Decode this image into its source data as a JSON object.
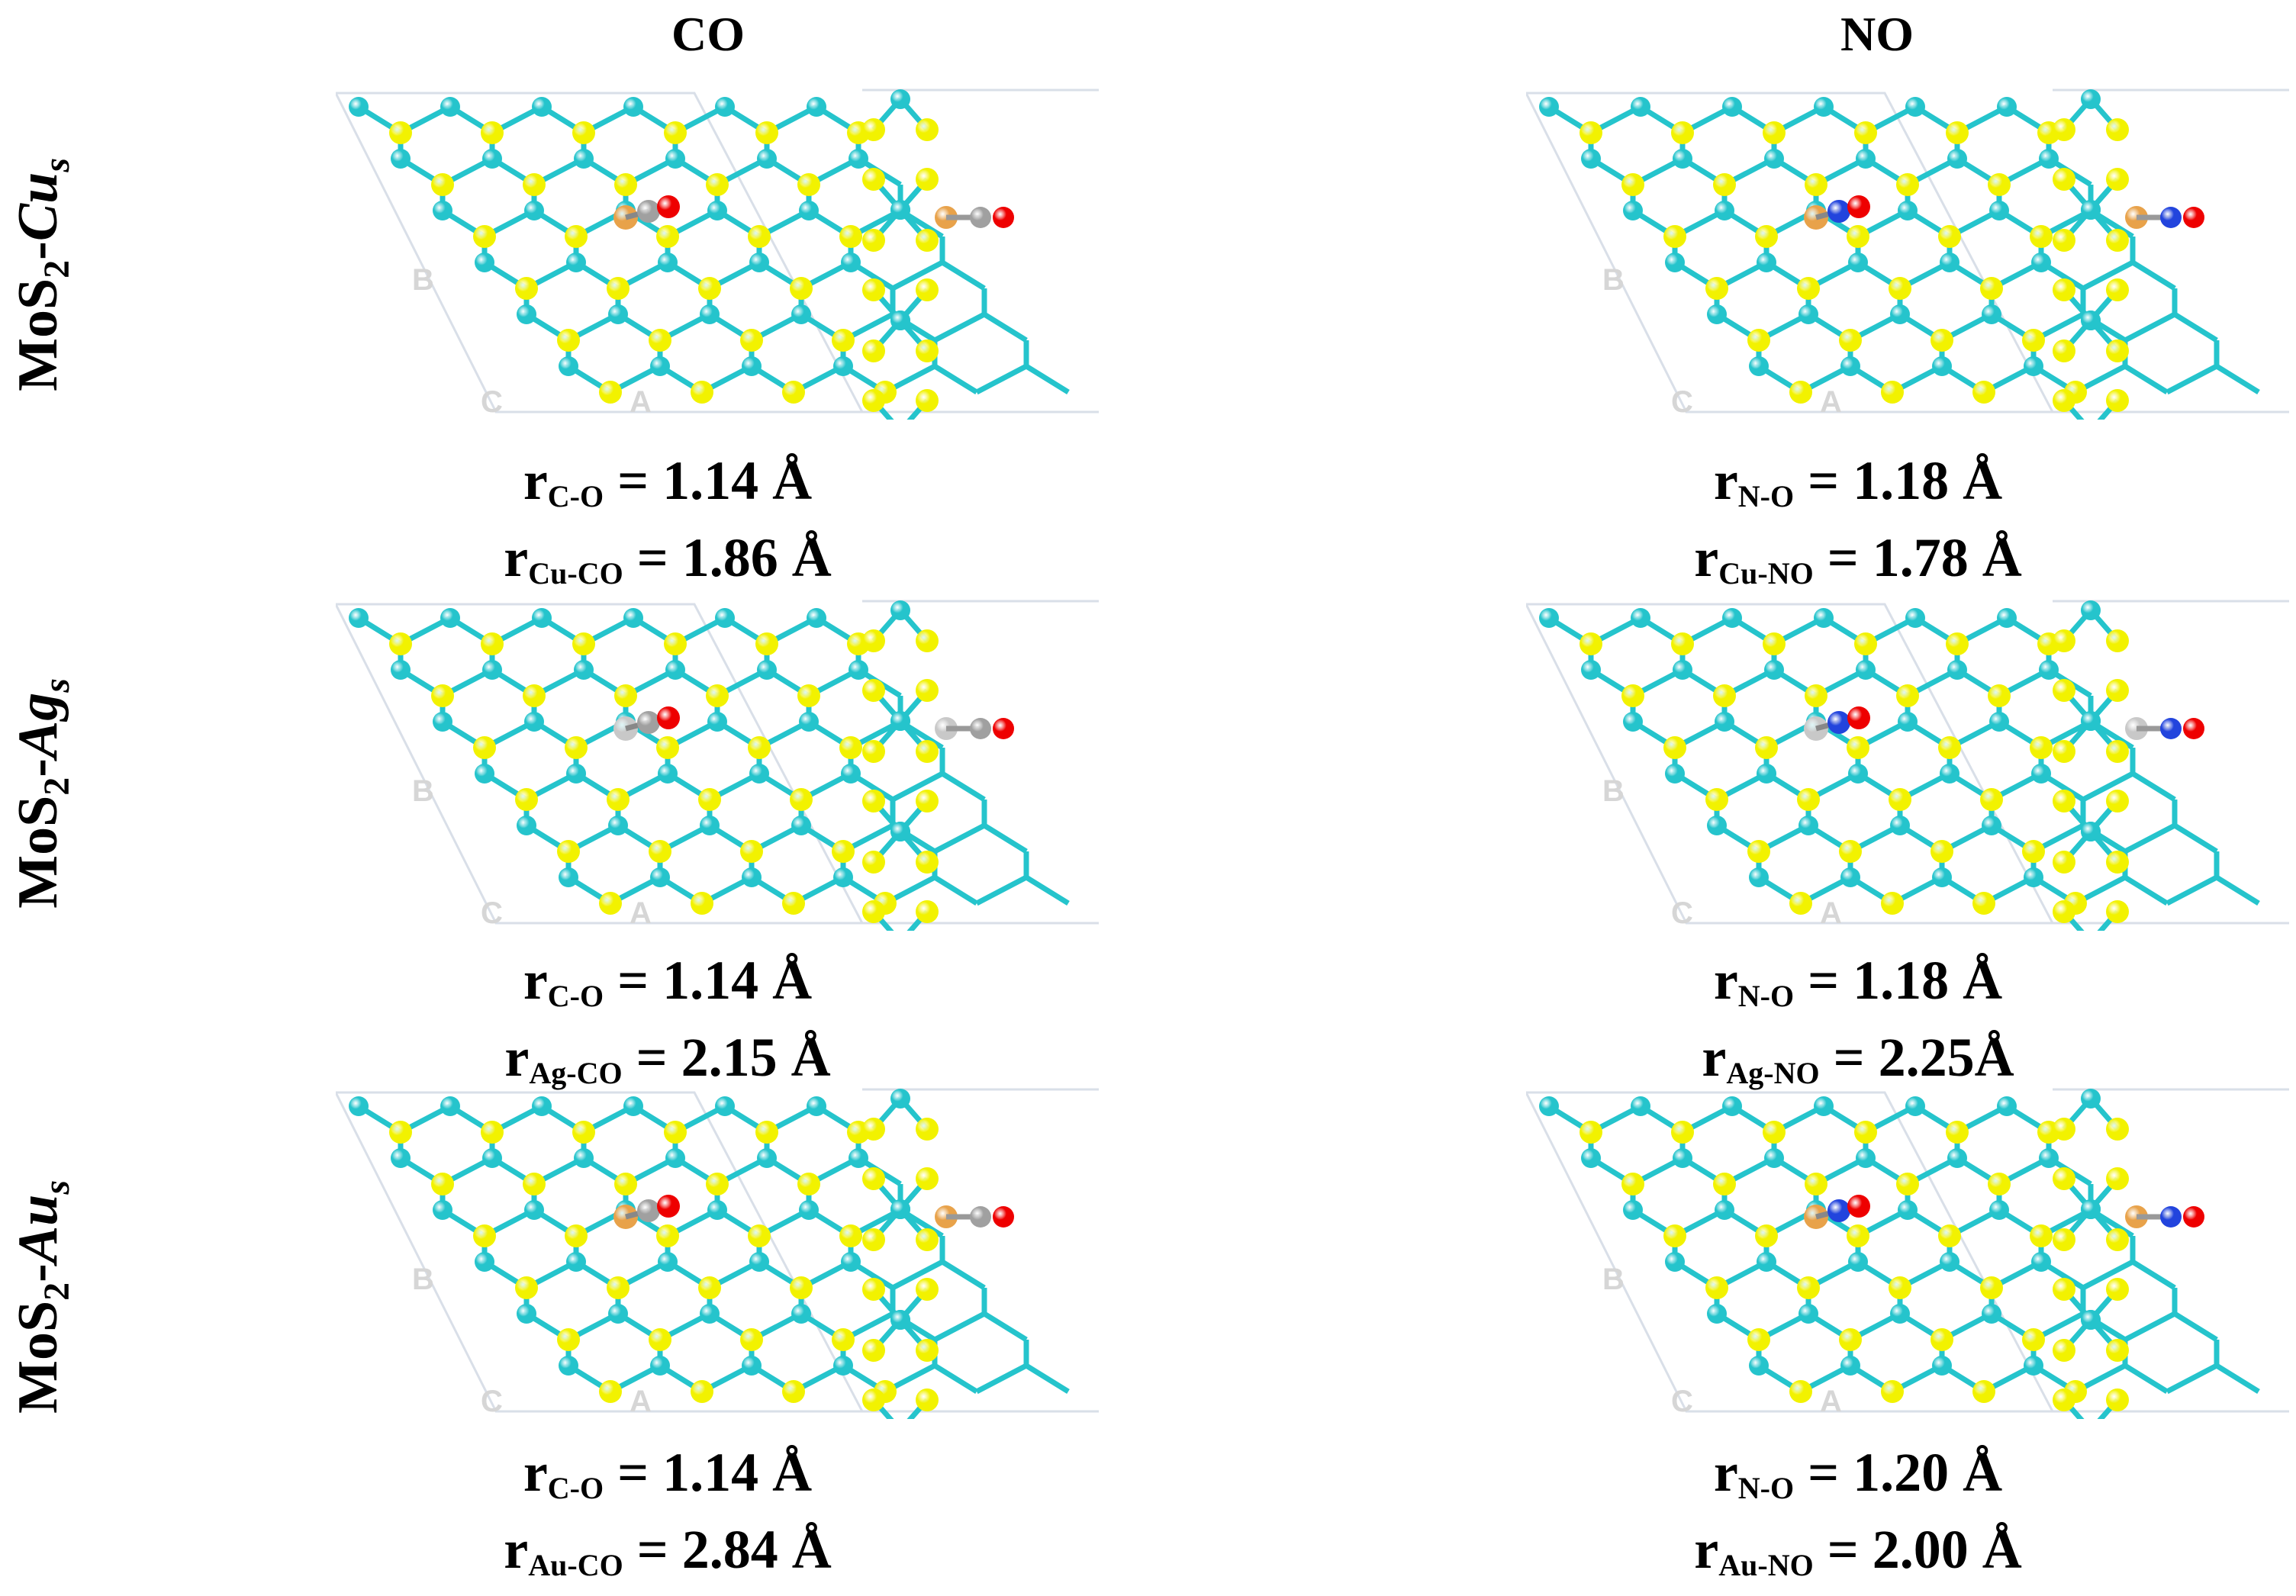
{
  "columns": [
    {
      "key": "co",
      "header": "CO"
    },
    {
      "key": "no",
      "header": "NO"
    }
  ],
  "rows": [
    {
      "key": "cu",
      "label_main": "MoS",
      "label_sub": "2",
      "label_dash": "-",
      "label_metal": "Cu",
      "label_metal_sub": "s"
    },
    {
      "key": "ag",
      "label_main": "MoS",
      "label_sub": "2",
      "label_dash": "-",
      "label_metal": "Ag",
      "label_metal_sub": "s"
    },
    {
      "key": "au",
      "label_main": "MoS",
      "label_sub": "2",
      "label_dash": "-",
      "label_metal": "Au",
      "label_metal_sub": "s"
    }
  ],
  "axis_letters": {
    "b": "B",
    "c": "C",
    "a": "A"
  },
  "captions": {
    "cu_co": {
      "l1_r": "r",
      "l1_sub": "C-O",
      "l1_val": " = 1.14 Å",
      "l2_r": "r",
      "l2_sub": "Cu-CO",
      "l2_val": " = 1.86 Å"
    },
    "cu_no": {
      "l1_r": "r",
      "l1_sub": "N-O",
      "l1_val": " = 1.18 Å",
      "l2_r": "r",
      "l2_sub": "Cu-NO",
      "l2_val": " = 1.78 Å"
    },
    "ag_co": {
      "l1_r": "r",
      "l1_sub": "C-O",
      "l1_val": " = 1.14 Å",
      "l2_r": "r",
      "l2_sub": "Ag-CO",
      "l2_val": " = 2.15 Å"
    },
    "ag_no": {
      "l1_r": "r",
      "l1_sub": "N-O",
      "l1_val": " = 1.18 Å",
      "l2_r": "r",
      "l2_sub": "Ag-NO",
      "l2_val": " = 2.25Å"
    },
    "au_co": {
      "l1_r": "r",
      "l1_sub": "C-O",
      "l1_val": " = 1.14 Å",
      "l2_r": "r",
      "l2_sub": "Au-CO",
      "l2_val": " = 2.84 Å"
    },
    "au_no": {
      "l1_r": "r",
      "l1_sub": "N-O",
      "l1_val": " = 1.20 Å",
      "l2_r": "r",
      "l2_sub": "Au-NO",
      "l2_val": " = 2.00 Å"
    }
  },
  "colors": {
    "mo_atom": "#25c4cc",
    "s_atom": "#f2f200",
    "cu_atom": "#e8a24a",
    "ag_atom": "#c8c8c8",
    "au_atom": "#e8a24a",
    "c_atom": "#a0a0a0",
    "o_atom": "#ee0000",
    "n_atom": "#2244dd",
    "bond": "#25c4cc",
    "cell_line": "#d9dfe8"
  }
}
